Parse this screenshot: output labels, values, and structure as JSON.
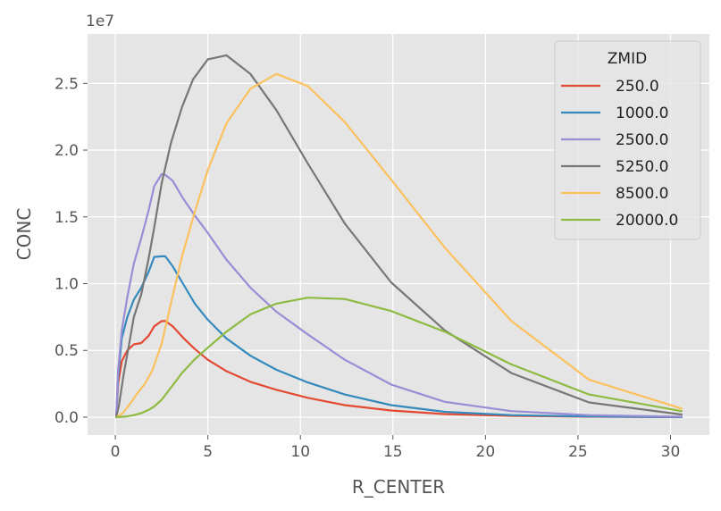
{
  "chart_data": {
    "type": "line",
    "xlabel": "R_CENTER",
    "ylabel": "CONC",
    "offset_label": "1e7",
    "xlim": [
      -1.5,
      32.1
    ],
    "ylim": [
      -1340000,
      28700000
    ],
    "x_ticks": [
      0,
      5,
      10,
      15,
      20,
      25,
      30
    ],
    "x_tick_labels": [
      "0",
      "5",
      "10",
      "15",
      "20",
      "25",
      "30"
    ],
    "y_ticks": [
      0,
      5000000,
      10000000,
      15000000,
      20000000,
      25000000
    ],
    "y_tick_labels": [
      "0.0",
      "0.5",
      "1.0",
      "1.5",
      "2.0",
      "2.5"
    ],
    "grid": true,
    "legend": {
      "title": "ZMID",
      "position": "top-right"
    },
    "series": [
      {
        "name": "250.0",
        "color": "#E24A33",
        "points": [
          [
            0.05,
            0
          ],
          [
            0.15,
            2500000
          ],
          [
            0.35,
            4200000
          ],
          [
            0.65,
            5000000
          ],
          [
            1.0,
            5450000
          ],
          [
            1.4,
            5550000
          ],
          [
            1.8,
            6100000
          ],
          [
            2.1,
            6800000
          ],
          [
            2.5,
            7200000
          ],
          [
            2.7,
            7200000
          ],
          [
            3.1,
            6800000
          ],
          [
            3.7,
            5900000
          ],
          [
            4.3,
            5100000
          ],
          [
            5.0,
            4300000
          ],
          [
            6.0,
            3450000
          ],
          [
            7.3,
            2650000
          ],
          [
            8.7,
            2050000
          ],
          [
            10.4,
            1450000
          ],
          [
            12.4,
            900000
          ],
          [
            14.9,
            500000
          ],
          [
            17.8,
            230000
          ],
          [
            21.4,
            100000
          ],
          [
            25.6,
            40000
          ],
          [
            30.6,
            5000
          ]
        ]
      },
      {
        "name": "1000.0",
        "color": "#348ABD",
        "points": [
          [
            0.05,
            0
          ],
          [
            0.15,
            3000000
          ],
          [
            0.35,
            5900000
          ],
          [
            0.65,
            7500000
          ],
          [
            1.0,
            8800000
          ],
          [
            1.4,
            9700000
          ],
          [
            1.8,
            10900000
          ],
          [
            2.1,
            12000000
          ],
          [
            2.5,
            12050000
          ],
          [
            2.7,
            12050000
          ],
          [
            3.1,
            11300000
          ],
          [
            3.7,
            9900000
          ],
          [
            4.3,
            8500000
          ],
          [
            5.0,
            7300000
          ],
          [
            6.0,
            5900000
          ],
          [
            7.3,
            4600000
          ],
          [
            8.7,
            3550000
          ],
          [
            10.4,
            2600000
          ],
          [
            12.4,
            1700000
          ],
          [
            14.9,
            900000
          ],
          [
            17.8,
            400000
          ],
          [
            21.4,
            150000
          ],
          [
            25.6,
            50000
          ],
          [
            30.6,
            8000
          ]
        ]
      },
      {
        "name": "2500.0",
        "color": "#988ED5",
        "points": [
          [
            0.05,
            0
          ],
          [
            0.15,
            3500000
          ],
          [
            0.35,
            6500000
          ],
          [
            0.65,
            9000000
          ],
          [
            1.0,
            11500000
          ],
          [
            1.4,
            13400000
          ],
          [
            1.8,
            15500000
          ],
          [
            2.1,
            17300000
          ],
          [
            2.5,
            18200000
          ],
          [
            2.7,
            18150000
          ],
          [
            3.1,
            17700000
          ],
          [
            3.7,
            16300000
          ],
          [
            4.3,
            15100000
          ],
          [
            5.0,
            13800000
          ],
          [
            6.0,
            11800000
          ],
          [
            7.3,
            9700000
          ],
          [
            8.7,
            7900000
          ],
          [
            10.4,
            6200000
          ],
          [
            12.4,
            4300000
          ],
          [
            14.9,
            2450000
          ],
          [
            17.8,
            1150000
          ],
          [
            21.4,
            450000
          ],
          [
            25.6,
            150000
          ],
          [
            30.6,
            30000
          ]
        ]
      },
      {
        "name": "5250.0",
        "color": "#777777",
        "points": [
          [
            0.05,
            0
          ],
          [
            0.2,
            900000
          ],
          [
            0.45,
            3200000
          ],
          [
            0.75,
            5500000
          ],
          [
            1.0,
            7500000
          ],
          [
            1.4,
            9200000
          ],
          [
            1.8,
            11900000
          ],
          [
            2.1,
            14200000
          ],
          [
            2.5,
            17500000
          ],
          [
            3.0,
            20500000
          ],
          [
            3.6,
            23200000
          ],
          [
            4.2,
            25300000
          ],
          [
            5.0,
            26800000
          ],
          [
            6.0,
            27100000
          ],
          [
            7.3,
            25700000
          ],
          [
            8.7,
            23000000
          ],
          [
            10.4,
            19000000
          ],
          [
            12.4,
            14500000
          ],
          [
            14.9,
            10100000
          ],
          [
            17.8,
            6500000
          ],
          [
            21.4,
            3300000
          ],
          [
            25.6,
            1100000
          ],
          [
            30.6,
            200000
          ]
        ]
      },
      {
        "name": "8500.0",
        "color": "#FBC15E",
        "points": [
          [
            0.05,
            0
          ],
          [
            0.4,
            300000
          ],
          [
            0.8,
            1000000
          ],
          [
            1.2,
            1800000
          ],
          [
            1.6,
            2500000
          ],
          [
            2.0,
            3500000
          ],
          [
            2.5,
            5500000
          ],
          [
            3.0,
            8500000
          ],
          [
            3.6,
            12000000
          ],
          [
            4.3,
            15400000
          ],
          [
            5.0,
            18500000
          ],
          [
            6.0,
            22000000
          ],
          [
            7.3,
            24600000
          ],
          [
            8.7,
            25700000
          ],
          [
            10.4,
            24800000
          ],
          [
            12.4,
            22100000
          ],
          [
            14.9,
            17800000
          ],
          [
            17.8,
            12700000
          ],
          [
            21.4,
            7200000
          ],
          [
            25.6,
            2800000
          ],
          [
            30.6,
            650000
          ]
        ]
      },
      {
        "name": "20000.0",
        "color": "#8EBA42",
        "points": [
          [
            0.05,
            0
          ],
          [
            0.6,
            50000
          ],
          [
            1.0,
            150000
          ],
          [
            1.4,
            300000
          ],
          [
            1.8,
            550000
          ],
          [
            2.1,
            800000
          ],
          [
            2.5,
            1300000
          ],
          [
            3.0,
            2200000
          ],
          [
            3.6,
            3300000
          ],
          [
            4.3,
            4350000
          ],
          [
            5.0,
            5200000
          ],
          [
            6.0,
            6400000
          ],
          [
            7.3,
            7700000
          ],
          [
            8.7,
            8500000
          ],
          [
            10.4,
            8950000
          ],
          [
            12.4,
            8850000
          ],
          [
            14.9,
            7950000
          ],
          [
            17.8,
            6400000
          ],
          [
            21.4,
            3950000
          ],
          [
            25.6,
            1700000
          ],
          [
            30.6,
            450000
          ]
        ]
      }
    ]
  }
}
